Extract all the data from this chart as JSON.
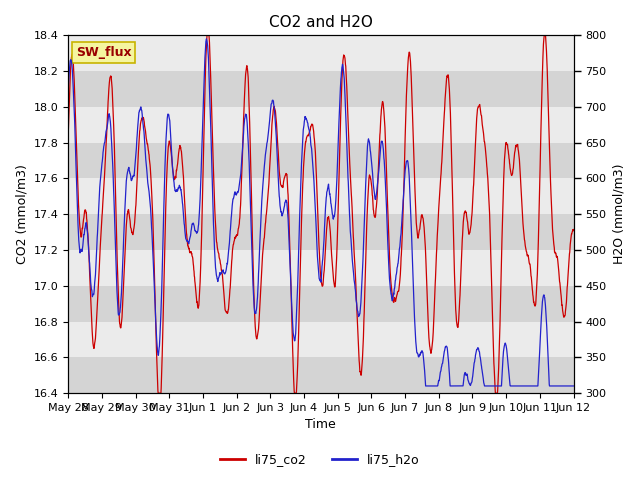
{
  "title": "CO2 and H2O",
  "xlabel": "Time",
  "ylabel_left": "CO2 (mmol/m3)",
  "ylabel_right": "H2O (mmol/m3)",
  "co2_ylim": [
    16.4,
    18.4
  ],
  "h2o_ylim": [
    300,
    800
  ],
  "annotation": "SW_flux",
  "legend_co2": "li75_co2",
  "legend_h2o": "li75_h2o",
  "co2_color": "#cc0000",
  "h2o_color": "#2222cc",
  "band_color_light": "#ebebeb",
  "band_color_dark": "#d4d4d4",
  "title_fontsize": 11,
  "axis_fontsize": 9,
  "tick_fontsize": 8,
  "x_ticks": [
    "May 28",
    "May 29",
    "May 30",
    "May 31",
    "Jun 1",
    "Jun 2",
    "Jun 3",
    "Jun 4",
    "Jun 5",
    "Jun 6",
    "Jun 7",
    "Jun 8",
    "Jun 9",
    "Jun 10",
    "Jun 11",
    "Jun 12"
  ],
  "n_points": 2000,
  "days": 15
}
